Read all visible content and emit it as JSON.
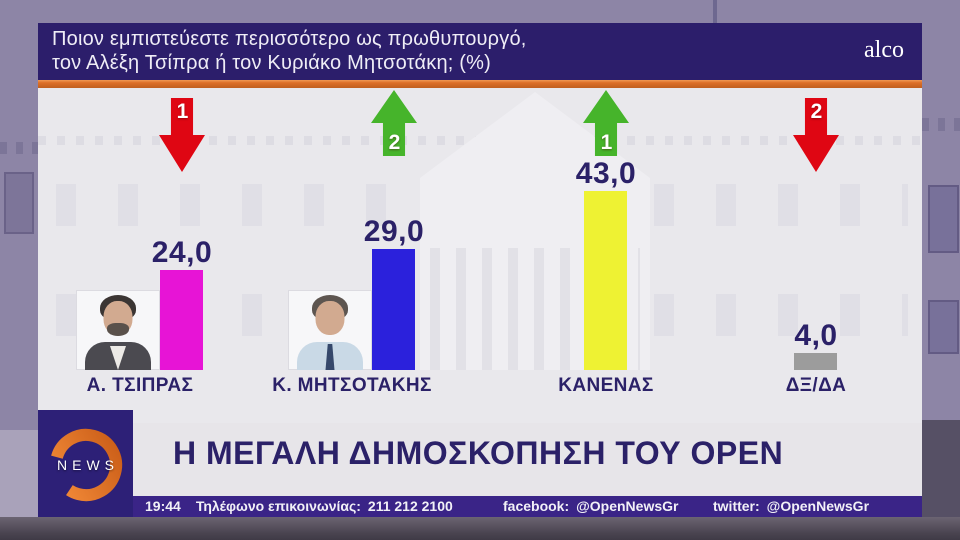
{
  "header": {
    "question_line1": "Ποιον εμπιστεύεστε περισσότερο ως πρωθυπουργό,",
    "question_line2": "τον Αλέξη Τσίπρα ή τον Κυριάκο Μητσοτάκη; (%)",
    "pollster_brand": "alco"
  },
  "chart_data": {
    "type": "bar",
    "title": "Ποιον εμπιστεύεστε περισσότερο ως πρωθυπουργό, τον Αλέξη Τσίπρα ή τον Κυριάκο Μητσοτάκη; (%)",
    "unit": "%",
    "categories": [
      "Α. ΤΣΙΠΡΑΣ",
      "Κ. ΜΗΤΣΟΤΑΚΗΣ",
      "ΚΑΝΕΝΑΣ",
      "ΔΞ/ΔΑ"
    ],
    "values": [
      24.0,
      29.0,
      43.0,
      4.0
    ],
    "value_labels": [
      "24,0",
      "29,0",
      "43,0",
      "4,0"
    ],
    "bar_colors": [
      "#e714d6",
      "#2b21dc",
      "#eef233",
      "#9c9c9c"
    ],
    "trends": [
      {
        "direction": "down",
        "rank": "1",
        "color": "#df0613"
      },
      {
        "direction": "up",
        "rank": "2",
        "color": "#46b42b"
      },
      {
        "direction": "up",
        "rank": "1",
        "color": "#46b42b"
      },
      {
        "direction": "down",
        "rank": "2",
        "color": "#df0613"
      }
    ],
    "portraits": [
      true,
      true,
      false,
      false
    ],
    "ylim": [
      0,
      45
    ],
    "grid": false,
    "legend": "none"
  },
  "banner": {
    "logo_text": "NEWS",
    "headline": "Η ΜΕΓΑΛΗ ΔΗΜΟΣΚΟΠΗΣΗ ΤΟΥ OPEN"
  },
  "ticker": {
    "time": "19:44",
    "phone_label": "Τηλέφωνο επικοινωνίας:",
    "phone_number": "211 212 2100",
    "facebook_label": "facebook:",
    "facebook_handle": "@OpenNewsGr",
    "twitter_label": "twitter:",
    "twitter_handle": "@OpenNewsGr"
  },
  "colors": {
    "header_background": "#2c1e6b",
    "accent_orange": "#dd6f28",
    "panel_background": "#e9e8ec",
    "ticker_background": "#3a2487",
    "logo_background": "#2d2077",
    "text_navy": "#2b2168",
    "outer_background": "#8d85a6"
  }
}
